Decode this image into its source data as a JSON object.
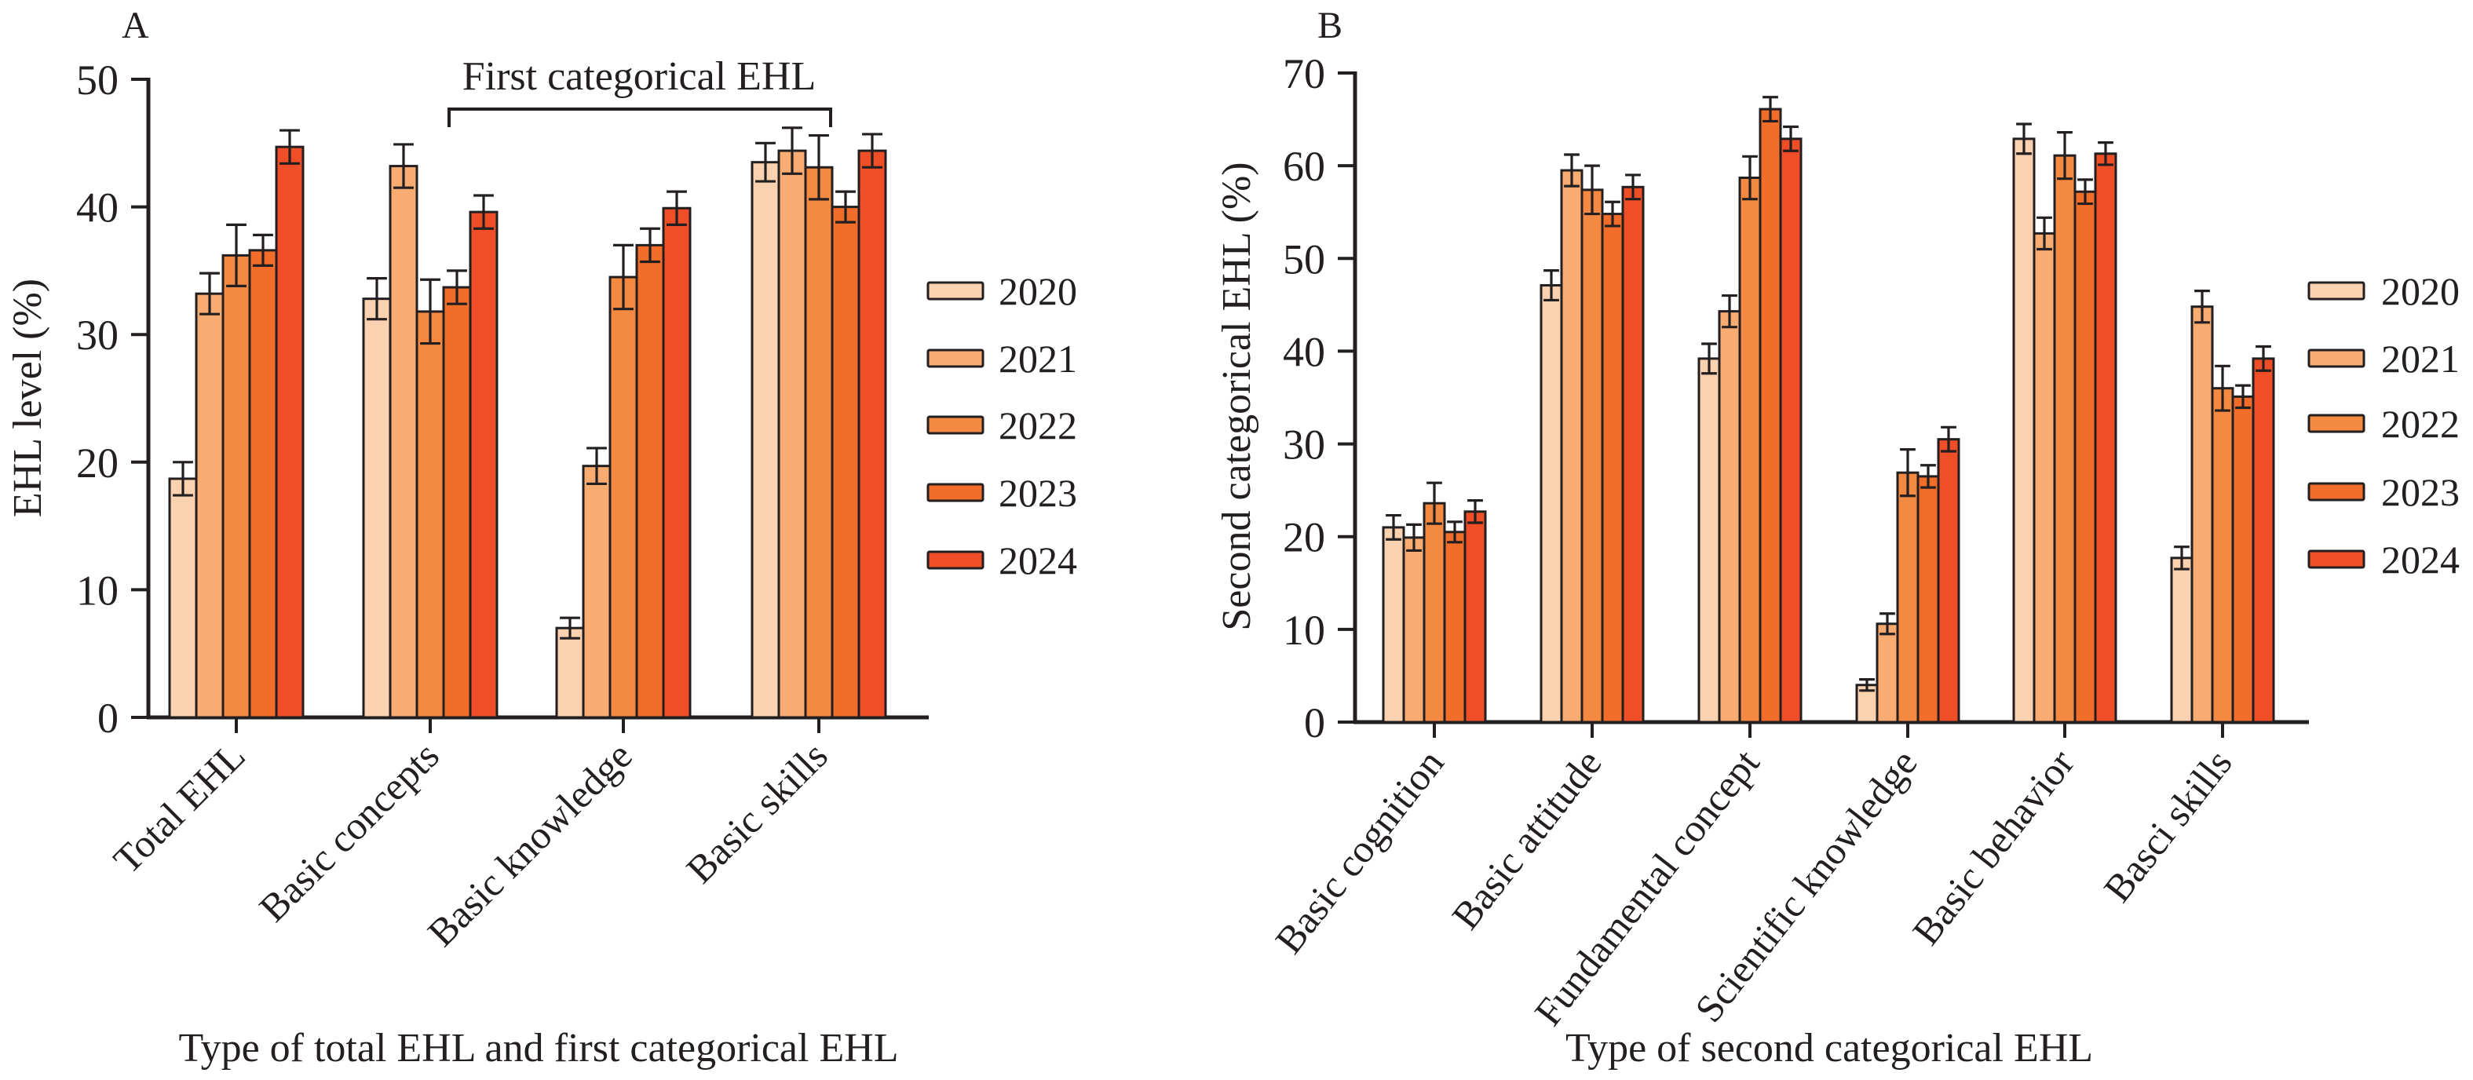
{
  "series_names": [
    "2020",
    "2021",
    "2022",
    "2023",
    "2024"
  ],
  "series_colors": [
    "#FBD2B0",
    "#F8AC72",
    "#F48A41",
    "#F26C2A",
    "#EF4E27"
  ],
  "chart_data": [
    {
      "type": "bar",
      "panel_label": "A",
      "title": "",
      "xlabel": "Type of total EHL and first categorical EHL",
      "ylabel": "EHL level (%)",
      "ylim": [
        0,
        50
      ],
      "yticks": [
        0,
        10,
        20,
        30,
        40,
        50
      ],
      "grid": false,
      "legend_position": "right",
      "annotation": {
        "text": "First categorical EHL",
        "spans_categories": [
          "Basic concepts",
          "Basic knowledge",
          "Basic skills"
        ]
      },
      "categories": [
        "Total EHL",
        "Basic concepts",
        "Basic knowledge",
        "Basic skills"
      ],
      "series": [
        {
          "name": "2020",
          "values": [
            18.7,
            32.8,
            7.0,
            43.5
          ],
          "errors": [
            1.3,
            1.6,
            0.8,
            1.5
          ]
        },
        {
          "name": "2021",
          "values": [
            33.2,
            43.2,
            19.7,
            44.4
          ],
          "errors": [
            1.6,
            1.7,
            1.4,
            1.8
          ]
        },
        {
          "name": "2022",
          "values": [
            36.2,
            31.8,
            34.5,
            43.1
          ],
          "errors": [
            2.4,
            2.5,
            2.5,
            2.5
          ]
        },
        {
          "name": "2023",
          "values": [
            36.6,
            33.7,
            37.0,
            40.0
          ],
          "errors": [
            1.2,
            1.3,
            1.3,
            1.2
          ]
        },
        {
          "name": "2024",
          "values": [
            44.7,
            39.6,
            39.9,
            44.4
          ],
          "errors": [
            1.3,
            1.3,
            1.3,
            1.3
          ]
        }
      ]
    },
    {
      "type": "bar",
      "panel_label": "B",
      "title": "",
      "xlabel": "Type of second categorical EHL",
      "ylabel": "Second categorical EHL (%)",
      "ylim": [
        0,
        70
      ],
      "yticks": [
        0,
        10,
        20,
        30,
        40,
        50,
        60,
        70
      ],
      "grid": false,
      "legend_position": "right",
      "categories": [
        "Basic cognition",
        "Basic attitude",
        "Fundamental concept",
        "Scientific knowledge",
        "Basic behavior",
        "Basci skills"
      ],
      "series": [
        {
          "name": "2020",
          "values": [
            21.0,
            47.1,
            39.2,
            4.0,
            62.9,
            17.7
          ],
          "errors": [
            1.3,
            1.6,
            1.6,
            0.6,
            1.6,
            1.2
          ]
        },
        {
          "name": "2021",
          "values": [
            19.9,
            59.5,
            44.3,
            10.6,
            52.7,
            44.8
          ],
          "errors": [
            1.4,
            1.7,
            1.7,
            1.1,
            1.7,
            1.7
          ]
        },
        {
          "name": "2022",
          "values": [
            23.6,
            57.4,
            58.7,
            26.9,
            61.1,
            36.0
          ],
          "errors": [
            2.2,
            2.6,
            2.3,
            2.5,
            2.5,
            2.4
          ]
        },
        {
          "name": "2023",
          "values": [
            20.5,
            54.8,
            66.1,
            26.5,
            57.2,
            35.1
          ],
          "errors": [
            1.1,
            1.3,
            1.3,
            1.2,
            1.3,
            1.2
          ]
        },
        {
          "name": "2024",
          "values": [
            22.7,
            57.7,
            62.9,
            30.5,
            61.3,
            39.2
          ],
          "errors": [
            1.2,
            1.3,
            1.3,
            1.3,
            1.2,
            1.3
          ]
        }
      ]
    }
  ]
}
